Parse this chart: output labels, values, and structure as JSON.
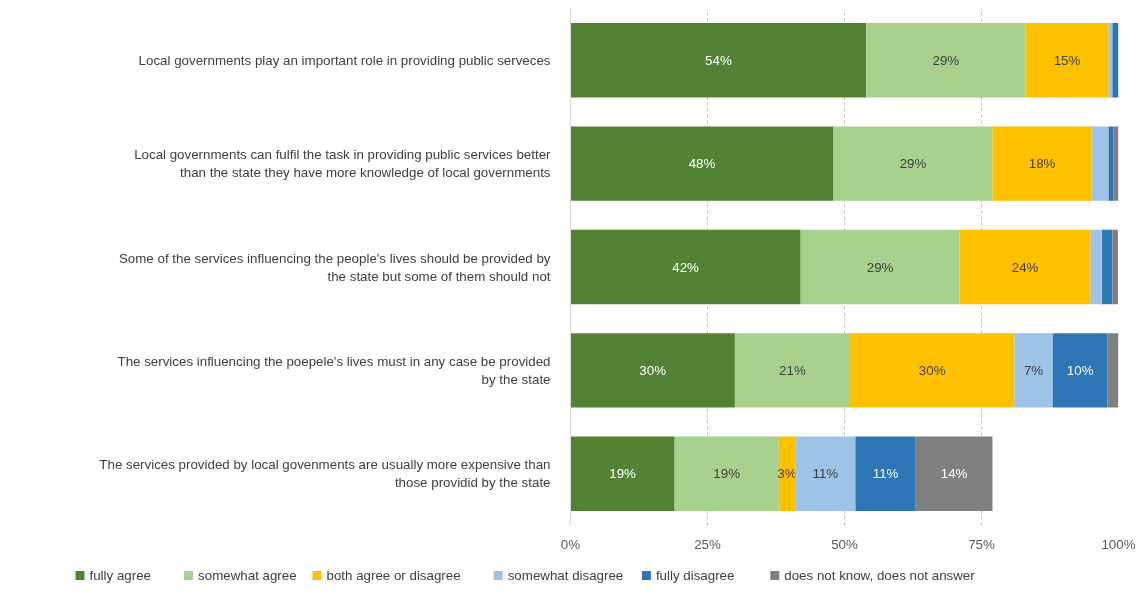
{
  "chart_data": {
    "type": "bar",
    "orientation": "horizontal",
    "stacked": true,
    "categories": [
      "Local governments play an important role in providing public serveces",
      "Local governments can fulfil the task in providing public services better than the state they have more knowledge of local governments",
      "Some of the services influencing the people's lives should be provided by the state but some of them should not",
      "The services influencing the poepele's lives must in any case be provided by the state",
      "The services provided by local govenments are usually more expensive than those providid by the state"
    ],
    "series": [
      {
        "name": "fully agree",
        "color": "#548235",
        "values": [
          54,
          48,
          42,
          30,
          19
        ],
        "value_labels": [
          "54%",
          "48%",
          "42%",
          "30%",
          "19%"
        ]
      },
      {
        "name": "somewhat agree",
        "color": "#a9d18e",
        "values": [
          29,
          29,
          29,
          21,
          19
        ],
        "value_labels": [
          "29%",
          "29%",
          "29%",
          "21%",
          "19%"
        ]
      },
      {
        "name": "both agree or disagree",
        "color": "#ffc000",
        "values": [
          15.2,
          18.1,
          23.9,
          30,
          3
        ],
        "value_labels": [
          "15%",
          "18%",
          "24%",
          "30%",
          "3%"
        ]
      },
      {
        "name": "somewhat disagree",
        "color": "#9dc3e6",
        "values": [
          0.7,
          3.1,
          2.1,
          7,
          11
        ],
        "value_labels": [
          null,
          null,
          null,
          "7%",
          "11%"
        ]
      },
      {
        "name": "fully disagree",
        "color": "#2e75b6",
        "values": [
          1.1,
          0.9,
          1.9,
          10,
          11
        ],
        "value_labels": [
          null,
          null,
          null,
          "10%",
          "11%"
        ]
      },
      {
        "name": "does not know, does not answer",
        "color": "#7f7f7f",
        "values": [
          0,
          1,
          1,
          2,
          14
        ],
        "value_labels": [
          null,
          null,
          null,
          null,
          "14%"
        ]
      }
    ],
    "xlim": [
      0,
      100
    ],
    "xticks": [
      {
        "value": 0,
        "label": "0%"
      },
      {
        "value": 25,
        "label": "25%"
      },
      {
        "value": 50,
        "label": "50%"
      },
      {
        "value": 75,
        "label": "75%"
      },
      {
        "value": 100,
        "label": "100%"
      }
    ],
    "grid": "x",
    "legend": "bottom"
  }
}
